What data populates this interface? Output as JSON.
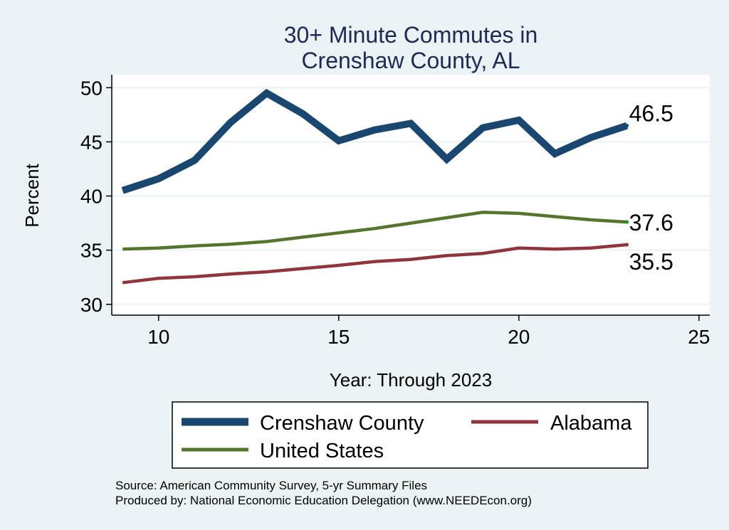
{
  "chart_data": {
    "type": "line",
    "title_lines": [
      "30+ Minute Commutes in",
      "Crenshaw County, AL"
    ],
    "xlabel": "Year: Through 2023",
    "ylabel": "Percent",
    "xlim": [
      8.7,
      25.3
    ],
    "ylim": [
      29,
      51.2
    ],
    "xticks": [
      10,
      15,
      20,
      25
    ],
    "yticks": [
      30,
      35,
      40,
      45,
      50
    ],
    "x": [
      9,
      10,
      11,
      12,
      13,
      14,
      15,
      16,
      17,
      18,
      19,
      20,
      21,
      22,
      23
    ],
    "series": [
      {
        "name": "Crenshaw County",
        "color": "#1a476f",
        "values": [
          40.5,
          41.6,
          43.3,
          46.8,
          49.5,
          47.6,
          45.1,
          46.1,
          46.7,
          43.4,
          46.3,
          47.0,
          43.9,
          45.4,
          46.5
        ],
        "end_label": "46.5"
      },
      {
        "name": "United States",
        "color": "#55752f",
        "values": [
          35.1,
          35.2,
          35.4,
          35.55,
          35.8,
          36.2,
          36.6,
          37.0,
          37.5,
          38.0,
          38.5,
          38.4,
          38.1,
          37.8,
          37.6
        ],
        "end_label": "37.6"
      },
      {
        "name": "Alabama",
        "color": "#90353b",
        "values": [
          32.0,
          32.4,
          32.55,
          32.8,
          33.0,
          33.3,
          33.6,
          33.95,
          34.15,
          34.5,
          34.7,
          35.2,
          35.1,
          35.2,
          35.5
        ],
        "end_label": "35.5"
      }
    ],
    "legend": [
      "Crenshaw County",
      "Alabama",
      "United States"
    ],
    "grid": true
  },
  "notes": {
    "source": "Source: American Community Survey, 5-yr Summary Files",
    "produced_by": "Produced by: National Economic Education Delegation (www.NEEDEcon.org)"
  }
}
